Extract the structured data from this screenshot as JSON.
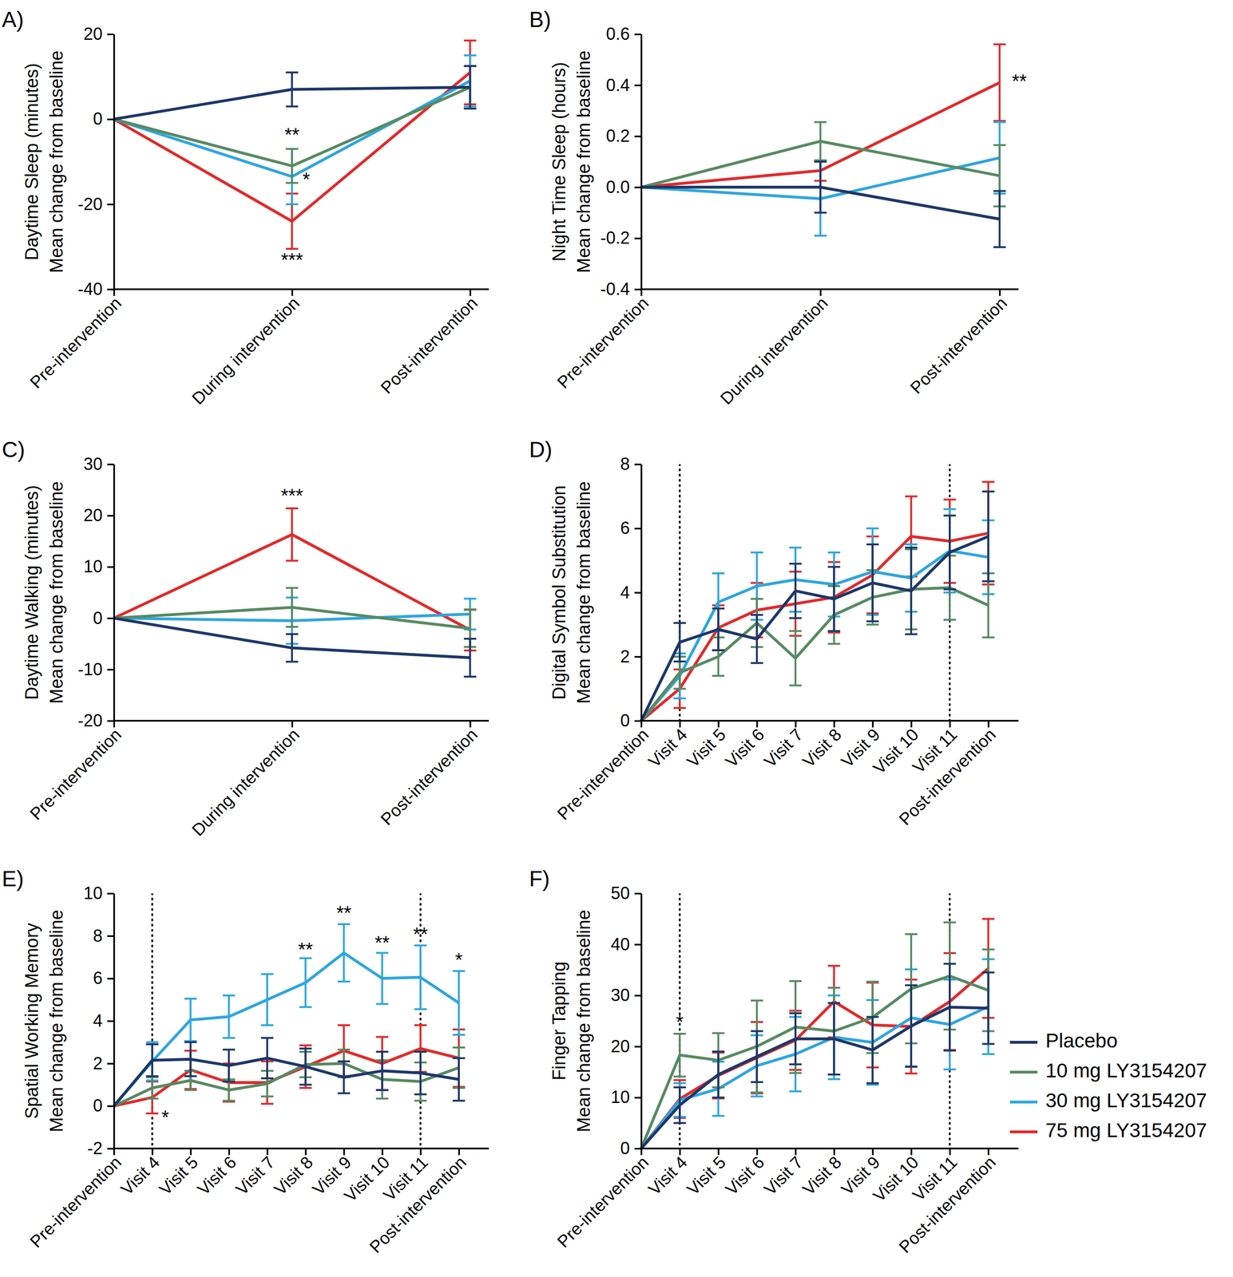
{
  "chart_data": [
    {
      "type": "line",
      "title": "A)",
      "ylabel": [
        "Daytime Sleep (minutes)",
        "Mean change from baseline"
      ],
      "categories": [
        "Pre-intervention",
        "During intervention",
        "Post-intervention"
      ],
      "ylim": [
        -40,
        20
      ],
      "yticks": [
        -40,
        -20,
        0,
        20
      ],
      "series": [
        {
          "color": "#1d3768",
          "values": [
            0,
            7,
            7.5
          ],
          "errors": [
            null,
            4,
            5
          ]
        },
        {
          "color": "#578a62",
          "values": [
            0,
            -11,
            7.5
          ],
          "errors": [
            null,
            4,
            5
          ]
        },
        {
          "color": "#2ea6de",
          "values": [
            0,
            -13.5,
            9
          ],
          "errors": [
            null,
            6.5,
            6
          ]
        },
        {
          "color": "#e12a2b",
          "values": [
            0,
            -24,
            11
          ],
          "errors": [
            null,
            6.5,
            7.5
          ]
        }
      ],
      "annotations": [
        {
          "text": "**",
          "x": 1,
          "y": -4
        },
        {
          "text": "*",
          "x": 1.08,
          "y": -14.5
        },
        {
          "text": "***",
          "x": 1,
          "y": -33.5
        }
      ]
    },
    {
      "type": "line",
      "title": "B)",
      "ylabel": [
        "Night Time Sleep (hours)",
        "Mean change from baseline"
      ],
      "categories": [
        "Pre-intervention",
        "During intervention",
        "Post-intervention"
      ],
      "ylim": [
        -0.4,
        0.6
      ],
      "yticks": [
        -0.4,
        -0.2,
        {
          "value": 0,
          "label": "0.0"
        },
        0.2,
        0.4,
        0.6
      ],
      "series": [
        {
          "color": "#1d3768",
          "values": [
            0,
            0,
            -0.125
          ],
          "errors": [
            null,
            0.1,
            0.11
          ]
        },
        {
          "color": "#578a62",
          "values": [
            0,
            0.18,
            0.045
          ],
          "errors": [
            null,
            0.075,
            0.12
          ]
        },
        {
          "color": "#2ea6de",
          "values": [
            0,
            -0.045,
            0.115
          ],
          "errors": [
            null,
            0.145,
            0.14
          ]
        },
        {
          "color": "#e12a2b",
          "values": [
            0,
            0.065,
            0.41
          ],
          "errors": [
            null,
            0.04,
            0.15
          ]
        }
      ],
      "annotations": [
        {
          "text": "**",
          "x": 2.11,
          "y": 0.41
        }
      ]
    },
    {
      "type": "line",
      "title": "C)",
      "ylabel": [
        "Daytime Walking (minutes)",
        "Mean change from baseline"
      ],
      "categories": [
        "Pre-intervention",
        "During intervention",
        "Post-intervention"
      ],
      "ylim": [
        -20,
        30
      ],
      "yticks": [
        -20,
        -10,
        0,
        10,
        20,
        30
      ],
      "series": [
        {
          "color": "#1d3768",
          "values": [
            0,
            -5.8,
            -7.7
          ],
          "errors": [
            null,
            2.7,
            3.7
          ]
        },
        {
          "color": "#578a62",
          "values": [
            0,
            2.1,
            -2
          ],
          "errors": [
            null,
            3.8,
            3.6
          ]
        },
        {
          "color": "#2ea6de",
          "values": [
            0,
            -0.5,
            0.8
          ],
          "errors": [
            null,
            4.5,
            3
          ]
        },
        {
          "color": "#e12a2b",
          "values": [
            0,
            16.3,
            -2.3
          ],
          "errors": [
            null,
            5.1,
            4
          ]
        }
      ],
      "annotations": [
        {
          "text": "***",
          "x": 1,
          "y": 23.6
        }
      ]
    },
    {
      "type": "line",
      "title": "D)",
      "ylabel": [
        "Digital Symbol Substitution",
        "Mean change from baseline"
      ],
      "categories": [
        "Pre-intervention",
        "Visit 4",
        "Visit 5",
        "Visit 6",
        "Visit 7",
        "Visit 8",
        "Visit 9",
        "Visit 10",
        "Visit 11",
        "Post-intervention"
      ],
      "ylim": [
        0,
        8
      ],
      "yticks": [
        0,
        2,
        4,
        6,
        8
      ],
      "vlines": [
        "Visit 4",
        "Visit 11"
      ],
      "series": [
        {
          "color": "#1d3768",
          "values": [
            0,
            2.45,
            2.85,
            2.55,
            4.05,
            3.8,
            4.3,
            4.05,
            5.25,
            5.75
          ],
          "errors": [
            null,
            0.6,
            0.65,
            0.75,
            0.85,
            1.0,
            1.2,
            1.35,
            1.15,
            1.4
          ]
        },
        {
          "color": "#578a62",
          "values": [
            0,
            1.5,
            2.0,
            3.05,
            1.95,
            3.3,
            3.85,
            4.1,
            4.15,
            3.6
          ],
          "errors": [
            null,
            0.5,
            0.6,
            0.75,
            0.85,
            0.9,
            0.85,
            1.25,
            1.0,
            1.0
          ]
        },
        {
          "color": "#2ea6de",
          "values": [
            0,
            1.4,
            3.7,
            4.2,
            4.4,
            4.25,
            4.65,
            4.45,
            5.3,
            5.1
          ],
          "errors": [
            null,
            0.7,
            0.9,
            1.05,
            1.0,
            1.0,
            1.35,
            1.05,
            1.3,
            1.15
          ]
        },
        {
          "color": "#e12a2b",
          "values": [
            0,
            1.0,
            2.9,
            3.45,
            3.65,
            3.85,
            4.55,
            5.75,
            5.6,
            5.85
          ],
          "errors": [
            null,
            0.6,
            0.7,
            0.85,
            1.0,
            1.1,
            1.2,
            1.25,
            1.3,
            1.6
          ]
        }
      ]
    },
    {
      "type": "line",
      "title": "E)",
      "ylabel": [
        "Spatial Working Memory",
        "Mean change from baseline"
      ],
      "categories": [
        "Pre-intervention",
        "Visit 4",
        "Visit 5",
        "Visit 6",
        "Visit 7",
        "Visit 8",
        "Visit 9",
        "Visit 10",
        "Visit 11",
        "Post-intervention"
      ],
      "ylim": [
        -2,
        10
      ],
      "yticks": [
        -2,
        0,
        2,
        4,
        6,
        8,
        10
      ],
      "vlines": [
        "Visit 4",
        "Visit 11"
      ],
      "series": [
        {
          "color": "#1d3768",
          "values": [
            0,
            2.15,
            2.2,
            1.9,
            2.25,
            1.85,
            1.35,
            1.65,
            1.55,
            1.25
          ],
          "errors": [
            null,
            0.75,
            0.8,
            0.75,
            0.95,
            0.85,
            0.75,
            0.9,
            1.0,
            1.0
          ]
        },
        {
          "color": "#578a62",
          "values": [
            0,
            0.85,
            1.2,
            0.75,
            1.05,
            1.95,
            2.0,
            1.25,
            1.15,
            1.8
          ],
          "errors": [
            null,
            0.5,
            0.45,
            0.5,
            0.6,
            0.6,
            0.65,
            0.9,
            0.9,
            0.95
          ]
        },
        {
          "color": "#2ea6de",
          "values": [
            0,
            2.1,
            4.05,
            4.2,
            5.0,
            5.8,
            7.2,
            6.0,
            6.05,
            4.85
          ],
          "errors": [
            null,
            0.9,
            1.0,
            1.0,
            1.2,
            1.15,
            1.35,
            1.2,
            1.5,
            1.5
          ]
        },
        {
          "color": "#e12a2b",
          "values": [
            0,
            0.4,
            1.7,
            1.1,
            1.1,
            1.85,
            2.6,
            2.0,
            2.7,
            2.25
          ],
          "errors": [
            null,
            0.75,
            0.9,
            0.9,
            1.0,
            1.0,
            1.2,
            1.25,
            1.1,
            1.35
          ]
        }
      ],
      "annotations": [
        {
          "text": "*",
          "x": 1.34,
          "y": -0.6
        },
        {
          "text": "**",
          "x": 5,
          "y": 7.3
        },
        {
          "text": "**",
          "x": 6,
          "y": 9.0
        },
        {
          "text": "**",
          "x": 7,
          "y": 7.6
        },
        {
          "text": "**",
          "x": 8,
          "y": 8.0
        },
        {
          "text": "*",
          "x": 9,
          "y": 6.8
        }
      ]
    },
    {
      "type": "line",
      "title": "F)",
      "ylabel": [
        "Finger Tapping",
        "Mean change from baseline"
      ],
      "categories": [
        "Pre-intervention",
        "Visit 4",
        "Visit 5",
        "Visit 6",
        "Visit 7",
        "Visit 8",
        "Visit 9",
        "Visit 10",
        "Visit 11",
        "Post-intervention"
      ],
      "ylim": [
        0,
        50
      ],
      "yticks": [
        0,
        10,
        20,
        30,
        40,
        50
      ],
      "vlines": [
        "Visit 4",
        "Visit 11"
      ],
      "legend": "right",
      "series": [
        {
          "name": "Placebo",
          "color": "#1d3768",
          "values": [
            0,
            8.5,
            14.5,
            18,
            21.5,
            21.5,
            19.3,
            24,
            27.7,
            27.5
          ],
          "errors": [
            null,
            3.5,
            4.5,
            5,
            5,
            7,
            6.5,
            8,
            8.5,
            7
          ]
        },
        {
          "name": "10 mg LY3154207",
          "color": "#578a62",
          "values": [
            0,
            18.3,
            17.3,
            20,
            23.8,
            23,
            25.7,
            31.3,
            33.8,
            31
          ],
          "errors": [
            null,
            4.2,
            5.3,
            9,
            9,
            8.5,
            7,
            10.7,
            10.5,
            8
          ]
        },
        {
          "name": "30 mg LY3154207",
          "color": "#2ea6de",
          "values": [
            0,
            9.5,
            11.7,
            16.2,
            18.5,
            21.8,
            20.8,
            25.6,
            24.3,
            27.8
          ],
          "errors": [
            null,
            3.3,
            5.3,
            6,
            7.3,
            8.2,
            8.3,
            9.5,
            8.8,
            9.3
          ]
        },
        {
          "name": "75 mg LY3154207",
          "color": "#e12a2b",
          "values": [
            0,
            9.7,
            14.3,
            17.8,
            21.2,
            28.8,
            24.2,
            23.9,
            28.8,
            35.3
          ],
          "errors": [
            null,
            3.7,
            4.5,
            7,
            5.8,
            7,
            8.3,
            9.2,
            9.5,
            9.7
          ]
        }
      ],
      "annotations": [
        {
          "text": "*",
          "x": 1,
          "y": 24.5
        }
      ]
    }
  ]
}
